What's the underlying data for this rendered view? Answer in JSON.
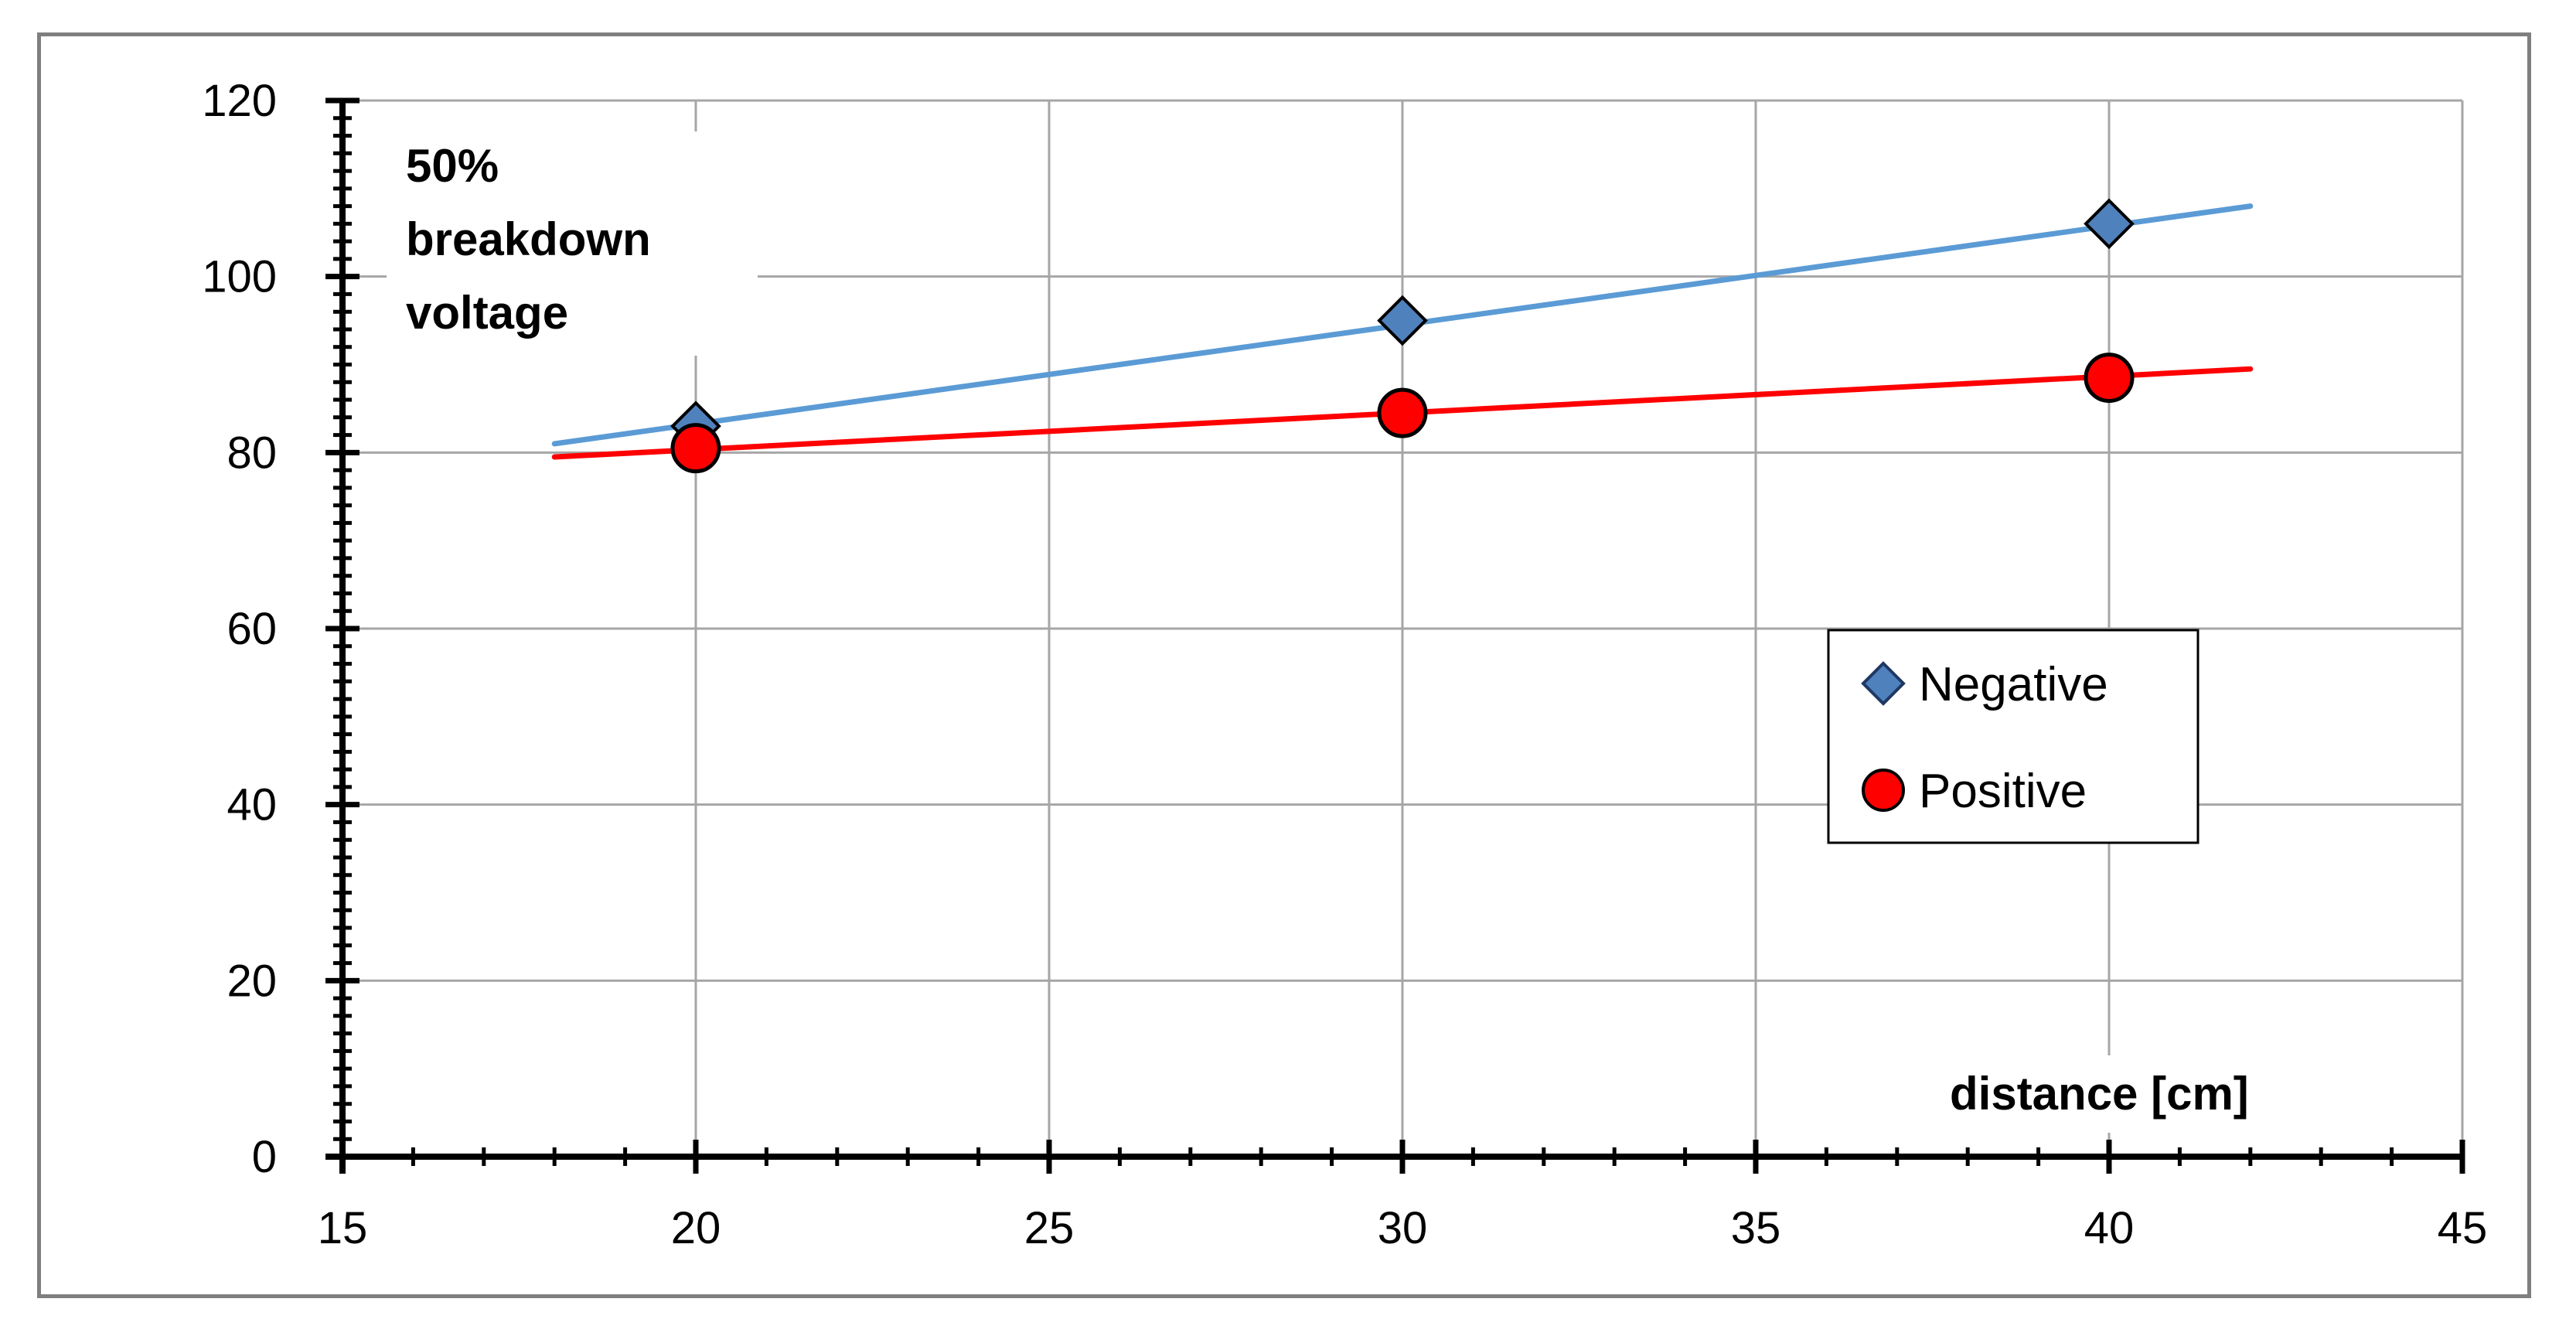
{
  "chart_data": {
    "type": "scatter",
    "annotation_lines": [
      "50%",
      "breakdown",
      "voltage"
    ],
    "xlabel": "distance [cm]",
    "ylabel": "",
    "xlim": [
      15,
      45
    ],
    "ylim": [
      0,
      120
    ],
    "x_ticks": [
      15,
      20,
      25,
      30,
      35,
      40,
      45
    ],
    "y_ticks": [
      0,
      20,
      40,
      60,
      80,
      100,
      120
    ],
    "grid": true,
    "legend_position": "right",
    "series": [
      {
        "name": "Negative",
        "marker": "diamond",
        "color": "#4f81bd",
        "line_color": "#5b9bd5",
        "x": [
          20,
          30,
          40
        ],
        "y": [
          83,
          95,
          106
        ],
        "trendline": {
          "x": [
            18,
            42
          ],
          "y": [
            81,
            108
          ]
        }
      },
      {
        "name": "Positive",
        "marker": "circle",
        "color": "#ff0000",
        "line_color": "#ff0000",
        "x": [
          20,
          30,
          40
        ],
        "y": [
          80.5,
          84.5,
          88.5
        ],
        "trendline": {
          "x": [
            18,
            42
          ],
          "y": [
            79.5,
            89.5
          ]
        }
      }
    ]
  }
}
